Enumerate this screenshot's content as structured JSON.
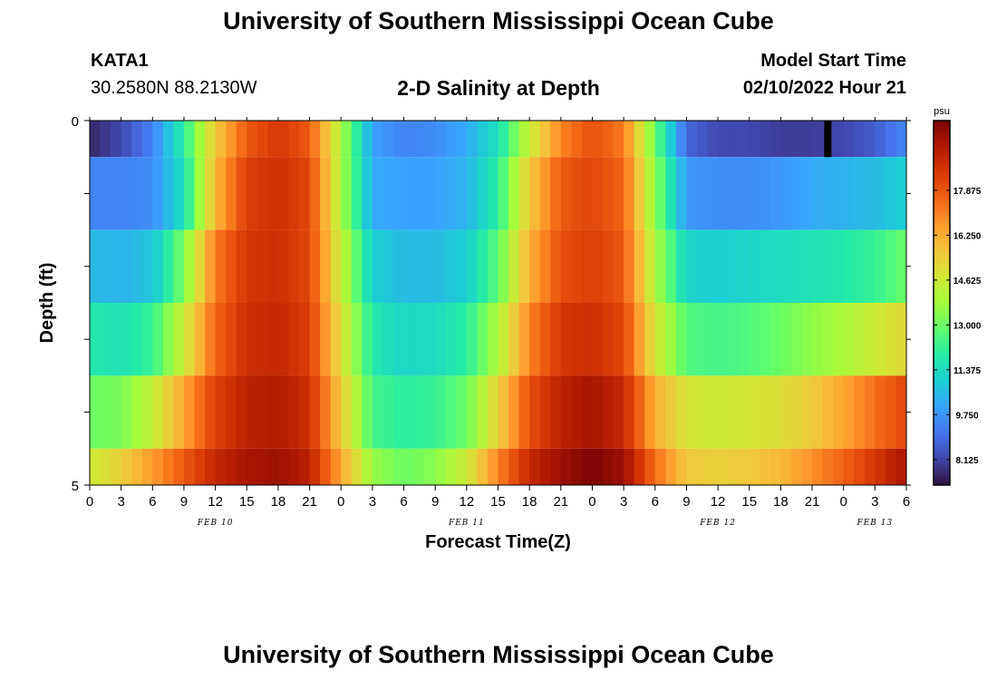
{
  "header": {
    "title": "University of Southern Mississippi Ocean Cube",
    "station_id": "KATA1",
    "coordinates": "30.2580N  88.2130W",
    "subtitle": "2-D Salinity at Depth",
    "start_label": "Model Start Time",
    "start_value": "02/10/2022 Hour 21"
  },
  "footer": {
    "title": "University of Southern Mississippi Ocean Cube"
  },
  "chart_data": {
    "type": "heatmap",
    "title": "2-D Salinity at Depth",
    "xlabel": "Forecast Time(Z)",
    "ylabel": "Depth (ft)",
    "x_hours_range": [
      0,
      78
    ],
    "y_range": [
      0,
      5
    ],
    "y_tick_labels": [
      "0",
      "5"
    ],
    "x_tick_labels": [
      "0",
      "3",
      "6",
      "9",
      "12",
      "15",
      "18",
      "21",
      "0",
      "3",
      "6",
      "9",
      "12",
      "15",
      "18",
      "21",
      "0",
      "3",
      "6",
      "9",
      "12",
      "15",
      "18",
      "21",
      "0",
      "3",
      "6"
    ],
    "date_labels": [
      {
        "label": "FEB 10",
        "hour": 12
      },
      {
        "label": "FEB 11",
        "hour": 36
      },
      {
        "label": "FEB 12",
        "hour": 60
      },
      {
        "label": "FEB 13",
        "hour": 75
      }
    ],
    "depth_layers": [
      0.5,
      1.5,
      2.5,
      3.5,
      4.5,
      5.0
    ],
    "key_hours": [
      0,
      3,
      6,
      9,
      12,
      15,
      18,
      21,
      24,
      27,
      30,
      33,
      36,
      39,
      42,
      45,
      48,
      51,
      54,
      57,
      60,
      63,
      66,
      69,
      72,
      75,
      78
    ],
    "salinity_psu": [
      [
        7.6,
        8.2,
        9.4,
        12.0,
        15.6,
        17.8,
        18.6,
        17.8,
        14.0,
        10.0,
        9.4,
        9.6,
        10.2,
        11.5,
        14.5,
        17.0,
        18.0,
        17.2,
        13.0,
        8.8,
        8.2,
        8.2,
        8.0,
        8.0,
        8.2,
        8.6,
        9.5
      ],
      [
        9.4,
        9.4,
        9.6,
        11.5,
        16.0,
        18.4,
        18.8,
        18.2,
        14.0,
        10.2,
        10.0,
        10.0,
        10.4,
        12.0,
        15.6,
        17.8,
        18.2,
        17.6,
        13.5,
        9.8,
        9.6,
        9.6,
        9.8,
        10.2,
        10.4,
        10.6,
        11.0
      ],
      [
        10.6,
        10.4,
        10.8,
        13.2,
        17.2,
        18.6,
        18.8,
        18.2,
        14.5,
        11.0,
        10.6,
        10.6,
        11.0,
        12.8,
        16.2,
        18.0,
        18.4,
        17.8,
        14.0,
        11.2,
        11.0,
        11.2,
        11.4,
        11.6,
        11.8,
        12.2,
        13.0
      ],
      [
        11.8,
        11.6,
        12.2,
        14.6,
        17.6,
        18.8,
        19.0,
        18.4,
        15.0,
        11.8,
        11.2,
        11.4,
        12.0,
        14.0,
        17.0,
        18.6,
        18.8,
        18.2,
        14.8,
        12.6,
        12.4,
        12.6,
        13.0,
        13.5,
        14.0,
        14.6,
        15.2
      ],
      [
        13.0,
        13.2,
        14.4,
        16.4,
        18.4,
        19.2,
        19.4,
        18.8,
        15.6,
        12.4,
        12.0,
        12.2,
        13.0,
        15.4,
        18.0,
        19.2,
        19.6,
        19.0,
        16.2,
        14.8,
        14.6,
        14.8,
        15.0,
        15.6,
        16.4,
        17.4,
        18.2
      ],
      [
        14.6,
        15.4,
        16.6,
        17.8,
        19.0,
        19.6,
        19.8,
        19.2,
        16.4,
        13.6,
        13.0,
        13.4,
        14.6,
        17.0,
        19.0,
        19.8,
        20.4,
        19.8,
        17.4,
        15.6,
        15.4,
        15.6,
        16.0,
        16.8,
        17.6,
        18.6,
        19.6
      ]
    ],
    "marker": {
      "hour": 70.5,
      "layer": 0,
      "color": "#000000"
    },
    "colorbar": {
      "unit": "psu",
      "range": [
        7.2,
        20.4
      ],
      "ticks": [
        "8.125",
        "9.750",
        "11.375",
        "13.000",
        "14.625",
        "16.250",
        "17.875"
      ]
    },
    "colors": {
      "stops": [
        "#30123b",
        "#4145ab",
        "#4675ed",
        "#39a2fc",
        "#1bcfd4",
        "#24eca6",
        "#61fc6c",
        "#a4fc3b",
        "#d1e834",
        "#f3c63a",
        "#fe9b2d",
        "#f36315",
        "#d93806",
        "#b11901",
        "#7a0403"
      ]
    }
  }
}
